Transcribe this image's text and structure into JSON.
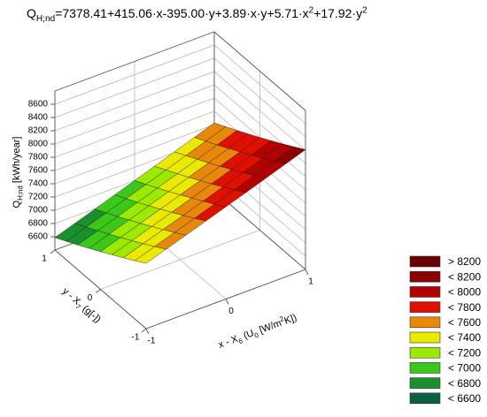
{
  "chart_data": {
    "type": "surface",
    "title_parts": [
      {
        "text": "Q"
      },
      {
        "text": "H;nd",
        "shift": "sub"
      },
      {
        "text": "=7378.41+415.06·x-395.00·y+3.89·x·y+5.71·x"
      },
      {
        "text": "2",
        "shift": "sup"
      },
      {
        "text": "+17.92·y"
      },
      {
        "text": "2",
        "shift": "sup"
      }
    ],
    "xlabel_parts": [
      {
        "text": "x - X"
      },
      {
        "text": "6",
        "shift": "sub"
      },
      {
        "text": " (U"
      },
      {
        "text": "0",
        "shift": "sub"
      },
      {
        "text": " [W/m"
      },
      {
        "text": "2",
        "shift": "sup"
      },
      {
        "text": "K])"
      }
    ],
    "ylabel_parts": [
      {
        "text": "y - X"
      },
      {
        "text": "7",
        "shift": "sub"
      },
      {
        "text": " (g[-])"
      }
    ],
    "zlabel_parts": [
      {
        "text": "Q"
      },
      {
        "text": "H;nd",
        "shift": "sub"
      },
      {
        "text": " [kWh/year]"
      }
    ],
    "x": [
      -1,
      -0.75,
      -0.5,
      -0.25,
      0,
      0.25,
      0.5,
      0.75,
      1
    ],
    "y": [
      -1,
      -0.75,
      -0.5,
      -0.25,
      0,
      0.25,
      0.5,
      0.75,
      1
    ],
    "z": [
      [
        7386,
        7486,
        7587,
        7689,
        7791,
        7894,
        7998,
        8103,
        8208
      ],
      [
        7278,
        7379,
        7480,
        7582,
        7685,
        7788,
        7892,
        7997,
        8103
      ],
      [
        7173,
        7274,
        7375,
        7477,
        7580,
        7684,
        7788,
        7893,
        7999
      ],
      [
        7070,
        7171,
        7273,
        7375,
        7478,
        7582,
        7687,
        7792,
        7898
      ],
      [
        6969,
        7070,
        7172,
        7275,
        7378,
        7483,
        7587,
        7693,
        7799
      ],
      [
        6870,
        6972,
        7074,
        7177,
        7281,
        7385,
        7490,
        7596,
        7703
      ],
      [
        6774,
        6876,
        6978,
        7081,
        7185,
        7290,
        7395,
        7501,
        7608
      ],
      [
        6680,
        6782,
        6885,
        6988,
        7092,
        7197,
        7303,
        7409,
        7516
      ],
      [
        6588,
        6690,
        6793,
        6897,
        7001,
        7106,
        7212,
        7319,
        7426
      ]
    ],
    "xlim": [
      -1,
      1
    ],
    "ylim": [
      -1,
      1
    ],
    "zlim": [
      6400,
      8800
    ],
    "xticks": [
      -1,
      0,
      1
    ],
    "yticks": [
      -1,
      0,
      1
    ],
    "zticks": [
      6600,
      6800,
      7000,
      7200,
      7400,
      7600,
      7800,
      8000,
      8200,
      8400,
      8600
    ],
    "legend": [
      {
        "value": 8200,
        "label": "> 8200",
        "color": "#6b0000"
      },
      {
        "value": 8200,
        "label": "< 8200",
        "color": "#8c0000"
      },
      {
        "value": 8000,
        "label": "< 8000",
        "color": "#b40000"
      },
      {
        "value": 7800,
        "label": "< 7800",
        "color": "#e01000"
      },
      {
        "value": 7600,
        "label": "< 7600",
        "color": "#e8880a"
      },
      {
        "value": 7400,
        "label": "< 7400",
        "color": "#eaea00"
      },
      {
        "value": 7200,
        "label": "< 7200",
        "color": "#9cea00"
      },
      {
        "value": 7000,
        "label": "< 7000",
        "color": "#3cc81a"
      },
      {
        "value": 6800,
        "label": "< 6800",
        "color": "#1a902c"
      },
      {
        "value": 6600,
        "label": "< 6600",
        "color": "#0a6040"
      }
    ]
  }
}
